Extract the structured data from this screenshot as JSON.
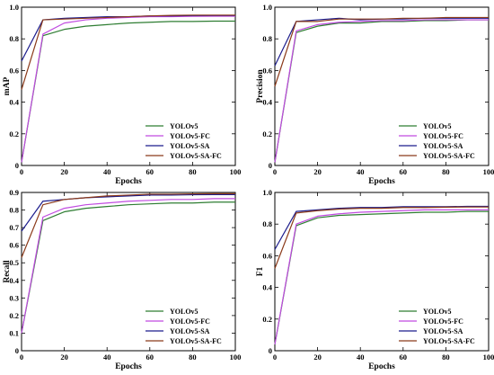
{
  "figure": {
    "colors": {
      "YOLOv5": "#2e7d32",
      "YOLOv5-FC": "#c04be0",
      "YOLOv5-SA": "#1c1c8c",
      "YOLOv5-SA-FC": "#8b3a1a"
    }
  },
  "chart_data": [
    {
      "id": "map",
      "type": "line",
      "ylabel": "mAP",
      "xlabel": "Epochs",
      "xlim": [
        0,
        100
      ],
      "ylim": [
        0,
        1.0
      ],
      "xticks": [
        0,
        20,
        40,
        60,
        80,
        100
      ],
      "yticks": [
        0,
        0.2,
        0.4,
        0.6,
        0.8,
        1.0
      ],
      "legend": "bottom-right",
      "x": [
        0,
        10,
        20,
        30,
        40,
        50,
        60,
        70,
        80,
        90,
        100
      ],
      "series": [
        {
          "name": "YOLOv5",
          "values": [
            0.02,
            0.82,
            0.86,
            0.88,
            0.89,
            0.9,
            0.905,
            0.91,
            0.91,
            0.912,
            0.912
          ]
        },
        {
          "name": "YOLOv5-FC",
          "values": [
            0.02,
            0.83,
            0.9,
            0.92,
            0.93,
            0.935,
            0.94,
            0.94,
            0.942,
            0.943,
            0.943
          ]
        },
        {
          "name": "YOLOv5-SA",
          "values": [
            0.66,
            0.92,
            0.93,
            0.935,
            0.94,
            0.94,
            0.945,
            0.945,
            0.947,
            0.948,
            0.948
          ]
        },
        {
          "name": "YOLOv5-SA-FC",
          "values": [
            0.48,
            0.92,
            0.925,
            0.93,
            0.935,
            0.94,
            0.945,
            0.948,
            0.95,
            0.95,
            0.95
          ]
        }
      ]
    },
    {
      "id": "precision",
      "type": "line",
      "ylabel": "Precision",
      "xlabel": "Epochs",
      "xlim": [
        0,
        100
      ],
      "ylim": [
        0,
        1.0
      ],
      "xticks": [
        0,
        20,
        40,
        60,
        80,
        100
      ],
      "yticks": [
        0,
        0.2,
        0.4,
        0.6,
        0.8,
        1.0
      ],
      "legend": "bottom-right",
      "x": [
        0,
        10,
        20,
        30,
        40,
        50,
        60,
        70,
        80,
        90,
        100
      ],
      "series": [
        {
          "name": "YOLOv5",
          "values": [
            0.02,
            0.84,
            0.88,
            0.9,
            0.9,
            0.91,
            0.91,
            0.915,
            0.915,
            0.92,
            0.92
          ]
        },
        {
          "name": "YOLOv5-FC",
          "values": [
            0.02,
            0.85,
            0.89,
            0.905,
            0.91,
            0.915,
            0.915,
            0.92,
            0.92,
            0.92,
            0.92
          ]
        },
        {
          "name": "YOLOv5-SA",
          "values": [
            0.63,
            0.91,
            0.92,
            0.93,
            0.92,
            0.925,
            0.925,
            0.93,
            0.93,
            0.93,
            0.93
          ]
        },
        {
          "name": "YOLOv5-SA-FC",
          "values": [
            0.5,
            0.91,
            0.91,
            0.925,
            0.925,
            0.925,
            0.93,
            0.93,
            0.935,
            0.935,
            0.935
          ]
        }
      ]
    },
    {
      "id": "recall",
      "type": "line",
      "ylabel": "Recall",
      "xlabel": "Epochs",
      "xlim": [
        0,
        100
      ],
      "ylim": [
        0,
        0.9
      ],
      "xticks": [
        0,
        20,
        40,
        60,
        80,
        100
      ],
      "yticks": [
        0.0,
        0.1,
        0.2,
        0.3,
        0.4,
        0.5,
        0.6,
        0.7,
        0.8,
        0.9
      ],
      "legend": "bottom-right",
      "x": [
        0,
        10,
        20,
        30,
        40,
        50,
        60,
        70,
        80,
        90,
        100
      ],
      "series": [
        {
          "name": "YOLOv5",
          "values": [
            0.1,
            0.74,
            0.79,
            0.81,
            0.82,
            0.83,
            0.835,
            0.84,
            0.84,
            0.845,
            0.845
          ]
        },
        {
          "name": "YOLOv5-FC",
          "values": [
            0.1,
            0.76,
            0.81,
            0.83,
            0.84,
            0.85,
            0.855,
            0.86,
            0.86,
            0.865,
            0.865
          ]
        },
        {
          "name": "YOLOv5-SA",
          "values": [
            0.68,
            0.85,
            0.86,
            0.87,
            0.875,
            0.88,
            0.885,
            0.885,
            0.887,
            0.888,
            0.888
          ]
        },
        {
          "name": "YOLOv5-SA-FC",
          "values": [
            0.53,
            0.83,
            0.86,
            0.87,
            0.88,
            0.885,
            0.89,
            0.89,
            0.892,
            0.893,
            0.893
          ]
        }
      ]
    },
    {
      "id": "f1",
      "type": "line",
      "ylabel": "F1",
      "xlabel": "Epochs",
      "xlim": [
        0,
        100
      ],
      "ylim": [
        0,
        1.0
      ],
      "xticks": [
        0,
        20,
        40,
        60,
        80,
        100
      ],
      "yticks": [
        0,
        0.2,
        0.4,
        0.6,
        0.8,
        1.0
      ],
      "legend": "bottom-right",
      "x": [
        0,
        10,
        20,
        30,
        40,
        50,
        60,
        70,
        80,
        90,
        100
      ],
      "series": [
        {
          "name": "YOLOv5",
          "values": [
            0.04,
            0.79,
            0.84,
            0.855,
            0.86,
            0.865,
            0.87,
            0.875,
            0.875,
            0.88,
            0.88
          ]
        },
        {
          "name": "YOLOv5-FC",
          "values": [
            0.04,
            0.8,
            0.85,
            0.865,
            0.875,
            0.88,
            0.885,
            0.89,
            0.89,
            0.89,
            0.89
          ]
        },
        {
          "name": "YOLOv5-SA",
          "values": [
            0.64,
            0.88,
            0.89,
            0.9,
            0.905,
            0.905,
            0.91,
            0.91,
            0.91,
            0.912,
            0.912
          ]
        },
        {
          "name": "YOLOv5-SA-FC",
          "values": [
            0.52,
            0.87,
            0.885,
            0.895,
            0.9,
            0.9,
            0.905,
            0.905,
            0.907,
            0.908,
            0.908
          ]
        }
      ]
    }
  ]
}
